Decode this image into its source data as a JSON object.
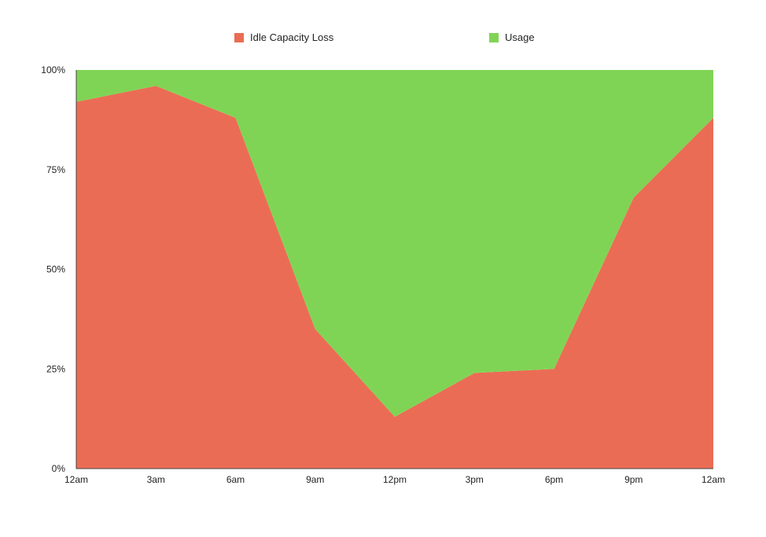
{
  "chart_data": {
    "type": "area",
    "stacked": true,
    "percent": true,
    "categories": [
      "12am",
      "3am",
      "6am",
      "9am",
      "12pm",
      "3pm",
      "6pm",
      "9pm",
      "12am"
    ],
    "series": [
      {
        "name": "Idle Capacity Loss",
        "color": "#EB6C54",
        "values": [
          92,
          96,
          88,
          35,
          13,
          24,
          25,
          68,
          88
        ]
      },
      {
        "name": "Usage",
        "color": "#80D455",
        "values": [
          8,
          4,
          12,
          65,
          87,
          76,
          75,
          32,
          12
        ]
      }
    ],
    "yticks": [
      "0%",
      "25%",
      "50%",
      "75%",
      "100%"
    ],
    "ylim": [
      0,
      100
    ],
    "legend_position": "top",
    "grid": false
  }
}
